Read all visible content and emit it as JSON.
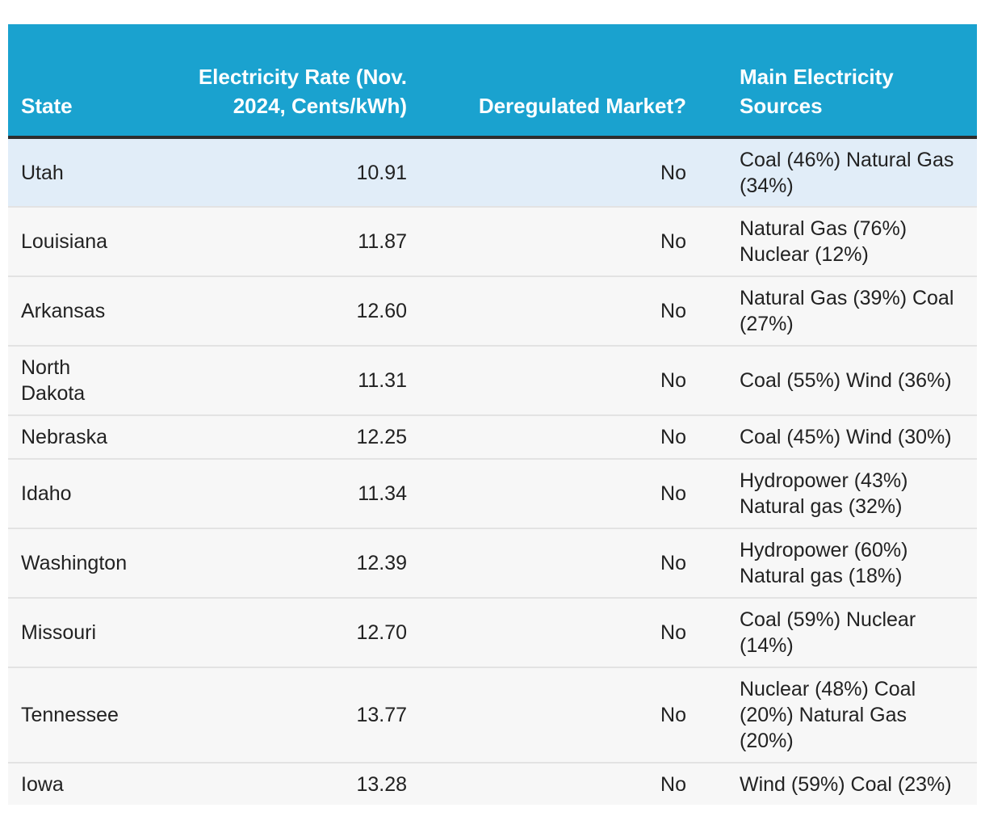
{
  "table": {
    "headers": {
      "state": "State",
      "rate": "Electricity Rate (Nov. 2024, Cents/kWh)",
      "deregulated": "Deregulated Market?",
      "sources": "Main Electricity Sources"
    },
    "rows": [
      {
        "state": "Utah",
        "rate": "10.91",
        "deregulated": "No",
        "sources": "Coal (46%) Natural Gas (34%)"
      },
      {
        "state": "Louisiana",
        "rate": "11.87",
        "deregulated": "No",
        "sources": "Natural Gas (76%) Nuclear (12%)"
      },
      {
        "state": "Arkansas",
        "rate": "12.60",
        "deregulated": "No",
        "sources": "Natural Gas (39%) Coal (27%)"
      },
      {
        "state": "North Dakota",
        "rate": "11.31",
        "deregulated": "No",
        "sources": "Coal (55%) Wind (36%)"
      },
      {
        "state": "Nebraska",
        "rate": "12.25",
        "deregulated": "No",
        "sources": "Coal (45%) Wind (30%)"
      },
      {
        "state": "Idaho",
        "rate": "11.34",
        "deregulated": "No",
        "sources": "Hydropower (43%) Natural gas (32%)"
      },
      {
        "state": "Washington",
        "rate": "12.39",
        "deregulated": "No",
        "sources": "Hydropower (60%) Natural gas (18%)"
      },
      {
        "state": "Missouri",
        "rate": "12.70",
        "deregulated": "No",
        "sources": "Coal (59%) Nuclear (14%)"
      },
      {
        "state": "Tennessee",
        "rate": "13.77",
        "deregulated": "No",
        "sources": "Nuclear (48%) Coal (20%) Natural Gas (20%)"
      },
      {
        "state": "Iowa",
        "rate": "13.28",
        "deregulated": "No",
        "sources": "Wind (59%) Coal (23%)"
      }
    ]
  },
  "colors": {
    "header_bg": "#1aa2cf",
    "header_text": "#ffffff",
    "header_rule": "#2d2d2d",
    "row_bg": "#f7f7f7",
    "highlight_row_bg": "#e1edf8",
    "row_divider": "#e3e3e3"
  }
}
